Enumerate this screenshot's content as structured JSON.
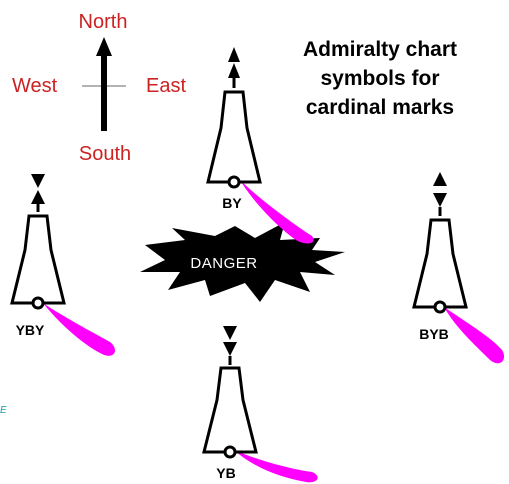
{
  "title": {
    "lines": [
      "Admiralty chart",
      "symbols for",
      "cardinal marks"
    ]
  },
  "compass": {
    "north": "North",
    "south": "South",
    "east": "East",
    "west": "West"
  },
  "danger": {
    "label": "DANGER"
  },
  "buoys": {
    "north": {
      "label": "BY",
      "topmark": "north-cones-up"
    },
    "east": {
      "label": "BYB",
      "topmark": "east-cones-apart"
    },
    "south": {
      "label": "YB",
      "topmark": "south-cones-down"
    },
    "west": {
      "label": "YBY",
      "topmark": "west-cones-together"
    }
  },
  "edge_glyph": "E",
  "colors": {
    "compass_text": "#cc2222",
    "light_flare": "#ff00ff",
    "outline": "#000000",
    "danger_fill": "#000000",
    "danger_text": "#ffffff",
    "edge_glyph": "#1aa0b0"
  }
}
